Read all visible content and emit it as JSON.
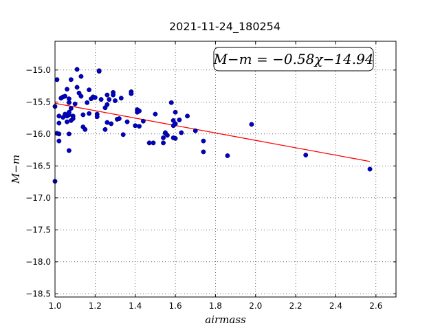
{
  "chart_data": {
    "type": "scatter",
    "title": "2021-11-24_180254",
    "xlabel": "airmass",
    "ylabel": "M−m",
    "xlim": [
      1.0,
      2.7
    ],
    "ylim": [
      -18.55,
      -14.55
    ],
    "y_inverted": true,
    "grid": true,
    "x_ticks": [
      1.0,
      1.2,
      1.4,
      1.6,
      1.8,
      2.0,
      2.2,
      2.4,
      2.6
    ],
    "x_tick_labels": [
      "1.0",
      "1.2",
      "1.4",
      "1.6",
      "1.8",
      "2.0",
      "2.2",
      "2.4",
      "2.6"
    ],
    "y_ticks": [
      -15.0,
      -15.5,
      -16.0,
      -16.5,
      -17.0,
      -17.5,
      -18.0,
      -18.5
    ],
    "y_tick_labels": [
      "−15.0",
      "−15.5",
      "−16.0",
      "−16.5",
      "−17.0",
      "−17.5",
      "−18.0",
      "−18.5"
    ],
    "annotation": "M−m = −0.58χ−14.94",
    "fit": {
      "slope": -0.58,
      "intercept": -14.94,
      "x_range": [
        1.0,
        2.57
      ],
      "color": "#ff0000"
    },
    "point_color": "#0000cc",
    "points": [
      [
        1.0,
        -16.74
      ],
      [
        1.0,
        -15.57
      ],
      [
        1.01,
        -15.15
      ],
      [
        1.01,
        -15.99
      ],
      [
        1.02,
        -16.0
      ],
      [
        1.02,
        -15.83
      ],
      [
        1.02,
        -16.11
      ],
      [
        1.02,
        -15.72
      ],
      [
        1.03,
        -15.44
      ],
      [
        1.04,
        -15.42
      ],
      [
        1.04,
        -15.74
      ],
      [
        1.05,
        -15.41
      ],
      [
        1.05,
        -15.69
      ],
      [
        1.06,
        -15.3
      ],
      [
        1.06,
        -15.81
      ],
      [
        1.06,
        -15.72
      ],
      [
        1.07,
        -15.45
      ],
      [
        1.07,
        -15.7
      ],
      [
        1.07,
        -15.66
      ],
      [
        1.07,
        -15.51
      ],
      [
        1.07,
        -16.0
      ],
      [
        1.07,
        -16.26
      ],
      [
        1.08,
        -15.15
      ],
      [
        1.08,
        -15.79
      ],
      [
        1.08,
        -15.6
      ],
      [
        1.09,
        -15.76
      ],
      [
        1.09,
        -15.72
      ],
      [
        1.1,
        -15.53
      ],
      [
        1.11,
        -14.99
      ],
      [
        1.11,
        -15.27
      ],
      [
        1.12,
        -15.36
      ],
      [
        1.13,
        -15.1
      ],
      [
        1.13,
        -15.41
      ],
      [
        1.14,
        -15.7
      ],
      [
        1.14,
        -15.89
      ],
      [
        1.15,
        -15.93
      ],
      [
        1.16,
        -15.51
      ],
      [
        1.17,
        -15.31
      ],
      [
        1.17,
        -15.68
      ],
      [
        1.18,
        -15.45
      ],
      [
        1.19,
        -15.42
      ],
      [
        1.2,
        -15.43
      ],
      [
        1.21,
        -15.69
      ],
      [
        1.21,
        -15.73
      ],
      [
        1.22,
        -15.02
      ],
      [
        1.22,
        -15.01
      ],
      [
        1.23,
        -15.46
      ],
      [
        1.25,
        -15.59
      ],
      [
        1.25,
        -15.93
      ],
      [
        1.26,
        -15.39
      ],
      [
        1.26,
        -15.54
      ],
      [
        1.26,
        -15.82
      ],
      [
        1.27,
        -15.46
      ],
      [
        1.28,
        -15.84
      ],
      [
        1.29,
        -15.35
      ],
      [
        1.29,
        -15.39
      ],
      [
        1.3,
        -15.48
      ],
      [
        1.31,
        -15.77
      ],
      [
        1.32,
        -15.76
      ],
      [
        1.33,
        -15.44
      ],
      [
        1.34,
        -16.01
      ],
      [
        1.36,
        -15.81
      ],
      [
        1.38,
        -15.34
      ],
      [
        1.38,
        -15.37
      ],
      [
        1.4,
        -15.87
      ],
      [
        1.41,
        -15.62
      ],
      [
        1.41,
        -15.66
      ],
      [
        1.42,
        -15.64
      ],
      [
        1.42,
        -15.88
      ],
      [
        1.44,
        -15.8
      ],
      [
        1.47,
        -16.14
      ],
      [
        1.49,
        -16.14
      ],
      [
        1.5,
        -15.69
      ],
      [
        1.54,
        -16.06
      ],
      [
        1.54,
        -16.14
      ],
      [
        1.55,
        -15.99
      ],
      [
        1.55,
        -15.98
      ],
      [
        1.56,
        -16.02
      ],
      [
        1.58,
        -15.51
      ],
      [
        1.59,
        -15.79
      ],
      [
        1.59,
        -15.87
      ],
      [
        1.59,
        -16.06
      ],
      [
        1.6,
        -15.66
      ],
      [
        1.6,
        -15.84
      ],
      [
        1.6,
        -16.07
      ],
      [
        1.62,
        -15.78
      ],
      [
        1.63,
        -15.98
      ],
      [
        1.66,
        -15.72
      ],
      [
        1.7,
        -15.95
      ],
      [
        1.74,
        -16.11
      ],
      [
        1.74,
        -16.28
      ],
      [
        1.86,
        -16.34
      ],
      [
        1.98,
        -15.85
      ],
      [
        2.25,
        -16.33
      ],
      [
        2.57,
        -16.55
      ]
    ]
  }
}
